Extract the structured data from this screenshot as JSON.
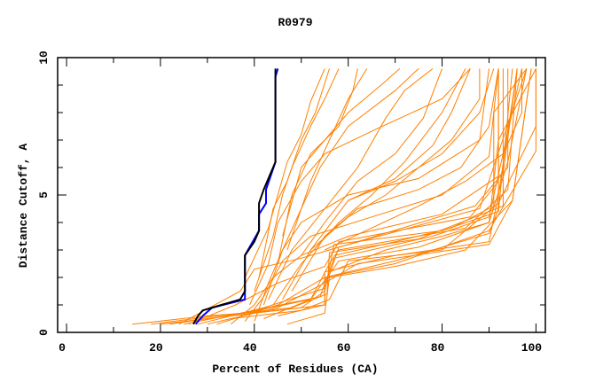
{
  "chart_data": {
    "type": "line",
    "title": "R0979",
    "xlabel": "Percent of Residues (CA)",
    "ylabel": "Distance Cutoff, A",
    "xlim": [
      -1.9,
      102
    ],
    "ylim": [
      0,
      10
    ],
    "xticks": [
      0,
      20,
      40,
      60,
      80,
      100
    ],
    "yticks": [
      0,
      5,
      10
    ],
    "grid": false,
    "colors": {
      "models": "#ff8000",
      "highlight_blue": "#0000ff",
      "highlight_black": "#000000"
    },
    "highlight_series": [
      {
        "name": "blue",
        "color": "#0000ff",
        "points": [
          [
            27.5,
            0.3
          ],
          [
            29,
            0.6
          ],
          [
            31,
            0.9
          ],
          [
            38,
            1.2
          ],
          [
            38,
            1.5
          ],
          [
            38,
            2.8
          ],
          [
            41,
            3.7
          ],
          [
            41,
            4.3
          ],
          [
            42.5,
            4.7
          ],
          [
            42.5,
            5.2
          ],
          [
            44.5,
            6.2
          ],
          [
            44.5,
            9.3
          ],
          [
            45,
            9.6
          ]
        ]
      },
      {
        "name": "black",
        "color": "#000000",
        "points": [
          [
            27,
            0.3
          ],
          [
            28,
            0.6
          ],
          [
            29,
            0.8
          ],
          [
            33,
            1.0
          ],
          [
            37,
            1.2
          ],
          [
            38,
            1.5
          ],
          [
            38,
            2.8
          ],
          [
            40,
            3.3
          ],
          [
            41,
            3.7
          ],
          [
            41,
            4.7
          ],
          [
            42,
            5.2
          ],
          [
            44.5,
            6.2
          ],
          [
            44.5,
            9.6
          ]
        ]
      }
    ],
    "series": [
      [
        [
          14,
          0.3
        ],
        [
          30,
          0.6
        ],
        [
          45,
          0.8
        ],
        [
          55,
          1.0
        ],
        [
          55,
          2.0
        ],
        [
          70,
          2.6
        ],
        [
          90,
          3.6
        ],
        [
          92,
          4.5
        ],
        [
          92,
          9.6
        ]
      ],
      [
        [
          18,
          0.3
        ],
        [
          32,
          0.6
        ],
        [
          48,
          0.9
        ],
        [
          55.5,
          1.4
        ],
        [
          56,
          2.9
        ],
        [
          75,
          3.4
        ],
        [
          93,
          4.6
        ],
        [
          93,
          9.6
        ]
      ],
      [
        [
          20,
          0.3
        ],
        [
          35,
          0.6
        ],
        [
          50,
          0.9
        ],
        [
          55,
          1.5
        ],
        [
          57,
          3.2
        ],
        [
          80,
          3.7
        ],
        [
          92,
          4.4
        ],
        [
          95,
          9.6
        ]
      ],
      [
        [
          22,
          0.3
        ],
        [
          38,
          0.7
        ],
        [
          52,
          1.2
        ],
        [
          56,
          2.5
        ],
        [
          58,
          3.0
        ],
        [
          85,
          3.8
        ],
        [
          94,
          5.2
        ],
        [
          96,
          9.6
        ]
      ],
      [
        [
          25,
          0.3
        ],
        [
          40,
          0.8
        ],
        [
          54,
          1.3
        ],
        [
          57,
          2.7
        ],
        [
          78,
          3.5
        ],
        [
          90,
          4.2
        ],
        [
          97,
          9.6
        ]
      ],
      [
        [
          28,
          0.3
        ],
        [
          42,
          0.9
        ],
        [
          55,
          1.6
        ],
        [
          58,
          3.1
        ],
        [
          88,
          4.5
        ],
        [
          98,
          9.6
        ]
      ],
      [
        [
          30,
          0.3
        ],
        [
          45,
          0.9
        ],
        [
          55,
          1.8
        ],
        [
          62,
          2.5
        ],
        [
          90,
          3.2
        ],
        [
          95,
          4.8
        ],
        [
          99,
          9.6
        ]
      ],
      [
        [
          32,
          0.3
        ],
        [
          45,
          1.0
        ],
        [
          55,
          2.0
        ],
        [
          70,
          2.5
        ],
        [
          90,
          3.7
        ],
        [
          100,
          6.6
        ],
        [
          100,
          9.6
        ]
      ],
      [
        [
          26,
          0.3
        ],
        [
          36,
          1.0
        ],
        [
          45,
          1.8
        ],
        [
          55,
          2.4
        ],
        [
          58,
          3.3
        ],
        [
          86,
          4.2
        ],
        [
          92,
          5.5
        ],
        [
          92,
          9.6
        ]
      ],
      [
        [
          24,
          0.3
        ],
        [
          37,
          1.5
        ],
        [
          40,
          2.3
        ],
        [
          50,
          2.7
        ],
        [
          60,
          3.2
        ],
        [
          87,
          4.6
        ],
        [
          94,
          6.0
        ],
        [
          94,
          9.6
        ]
      ],
      [
        [
          35,
          0.3
        ],
        [
          40,
          1.0
        ],
        [
          44,
          2.0
        ],
        [
          50,
          2.8
        ],
        [
          60,
          3.5
        ],
        [
          80,
          4.3
        ],
        [
          93,
          5.8
        ],
        [
          96,
          9.6
        ]
      ],
      [
        [
          38,
          0.4
        ],
        [
          42,
          1.3
        ],
        [
          46,
          2.6
        ],
        [
          52,
          3.5
        ],
        [
          65,
          4.2
        ],
        [
          80,
          5.0
        ],
        [
          90,
          6.4
        ],
        [
          92,
          9.6
        ]
      ],
      [
        [
          40,
          0.4
        ],
        [
          43,
          1.8
        ],
        [
          46,
          3.0
        ],
        [
          50,
          4.0
        ],
        [
          60,
          5.0
        ],
        [
          75,
          5.6
        ],
        [
          88,
          7.0
        ],
        [
          90,
          9.6
        ]
      ],
      [
        [
          39,
          1.0
        ],
        [
          43,
          2.5
        ],
        [
          45,
          4.0
        ],
        [
          50,
          5.5
        ],
        [
          55,
          6.5
        ],
        [
          66,
          7.4
        ],
        [
          80,
          8.5
        ],
        [
          86,
          9.6
        ]
      ],
      [
        [
          40,
          1.5
        ],
        [
          44,
          3.5
        ],
        [
          46,
          5.0
        ],
        [
          48,
          6.0
        ],
        [
          52,
          7.5
        ],
        [
          55,
          8.5
        ],
        [
          58,
          9.6
        ]
      ],
      [
        [
          41,
          2.0
        ],
        [
          44,
          4.5
        ],
        [
          47,
          5.5
        ],
        [
          50,
          7.0
        ],
        [
          53,
          8.0
        ],
        [
          56,
          9.6
        ]
      ],
      [
        [
          38,
          2.0
        ],
        [
          43,
          3.8
        ],
        [
          47,
          6.2
        ],
        [
          50,
          7.2
        ],
        [
          52,
          8.4
        ],
        [
          55,
          9.6
        ]
      ],
      [
        [
          42,
          1.0
        ],
        [
          46,
          3.0
        ],
        [
          50,
          4.5
        ],
        [
          54,
          6.0
        ],
        [
          60,
          7.5
        ],
        [
          70,
          8.8
        ],
        [
          75,
          9.6
        ]
      ],
      [
        [
          43,
          1.2
        ],
        [
          48,
          3.0
        ],
        [
          55,
          4.5
        ],
        [
          62,
          6.0
        ],
        [
          68,
          7.8
        ],
        [
          72,
          8.8
        ],
        [
          78,
          9.6
        ]
      ],
      [
        [
          44,
          1.0
        ],
        [
          50,
          2.5
        ],
        [
          58,
          4.0
        ],
        [
          65,
          5.0
        ],
        [
          72,
          6.2
        ],
        [
          80,
          8.0
        ],
        [
          85,
          9.6
        ]
      ],
      [
        [
          46,
          1.2
        ],
        [
          52,
          3.0
        ],
        [
          60,
          4.8
        ],
        [
          70,
          5.5
        ],
        [
          80,
          6.5
        ],
        [
          88,
          8.0
        ],
        [
          91,
          9.6
        ]
      ],
      [
        [
          48,
          1.5
        ],
        [
          55,
          3.5
        ],
        [
          62,
          4.5
        ],
        [
          75,
          5.2
        ],
        [
          84,
          6.0
        ],
        [
          90,
          7.5
        ],
        [
          92,
          9.6
        ]
      ],
      [
        [
          45,
          2.5
        ],
        [
          48,
          5.0
        ],
        [
          52,
          6.5
        ],
        [
          58,
          7.5
        ],
        [
          61,
          8.8
        ],
        [
          62,
          9.6
        ]
      ],
      [
        [
          47,
          3.0
        ],
        [
          52,
          5.5
        ],
        [
          56,
          7.0
        ],
        [
          60,
          8.5
        ],
        [
          64,
          9.6
        ]
      ],
      [
        [
          50,
          2.8
        ],
        [
          55,
          4.0
        ],
        [
          62,
          5.5
        ],
        [
          70,
          6.5
        ],
        [
          76,
          7.8
        ],
        [
          80,
          9.6
        ]
      ],
      [
        [
          52,
          3.0
        ],
        [
          60,
          4.2
        ],
        [
          68,
          5.0
        ],
        [
          75,
          6.0
        ],
        [
          82,
          7.0
        ],
        [
          88,
          8.5
        ],
        [
          88,
          9.6
        ]
      ],
      [
        [
          55,
          3.0
        ],
        [
          65,
          3.8
        ],
        [
          75,
          4.6
        ],
        [
          85,
          5.5
        ],
        [
          93,
          6.5
        ],
        [
          97,
          8.0
        ],
        [
          97,
          9.6
        ]
      ],
      [
        [
          57,
          2.8
        ],
        [
          70,
          3.3
        ],
        [
          82,
          3.8
        ],
        [
          91,
          4.6
        ],
        [
          91,
          8.0
        ],
        [
          98,
          9.6
        ]
      ],
      [
        [
          56,
          2.2
        ],
        [
          68,
          3.0
        ],
        [
          80,
          3.5
        ],
        [
          90,
          4.0
        ],
        [
          92,
          7.0
        ],
        [
          100,
          9.6
        ]
      ],
      [
        [
          45,
          0.6
        ],
        [
          55,
          1.0
        ],
        [
          55,
          2.2
        ],
        [
          70,
          2.8
        ],
        [
          90,
          3.3
        ],
        [
          92,
          5.0
        ],
        [
          96,
          9.6
        ]
      ],
      [
        [
          35,
          0.5
        ],
        [
          50,
          0.8
        ],
        [
          56,
          1.2
        ],
        [
          60,
          2.6
        ],
        [
          80,
          3.0
        ],
        [
          92,
          4.7
        ],
        [
          100,
          7.5
        ],
        [
          100,
          9.6
        ]
      ],
      [
        [
          47,
          0.3
        ],
        [
          55,
          0.7
        ],
        [
          56,
          2.0
        ],
        [
          70,
          2.4
        ],
        [
          85,
          3.0
        ],
        [
          95,
          4.8
        ],
        [
          99,
          9.6
        ]
      ],
      [
        [
          42,
          0.5
        ],
        [
          52,
          1.2
        ],
        [
          58,
          2.6
        ],
        [
          75,
          3.1
        ],
        [
          90,
          4.0
        ],
        [
          94,
          6.2
        ],
        [
          98,
          9.6
        ]
      ],
      [
        [
          46,
          3.5
        ],
        [
          50,
          6.0
        ],
        [
          55,
          7.0
        ],
        [
          60,
          8.0
        ],
        [
          67,
          9.0
        ],
        [
          71,
          9.6
        ]
      ],
      [
        [
          60,
          4.8
        ],
        [
          70,
          5.6
        ],
        [
          78,
          6.8
        ],
        [
          82,
          8.0
        ],
        [
          86,
          9.6
        ]
      ]
    ]
  }
}
